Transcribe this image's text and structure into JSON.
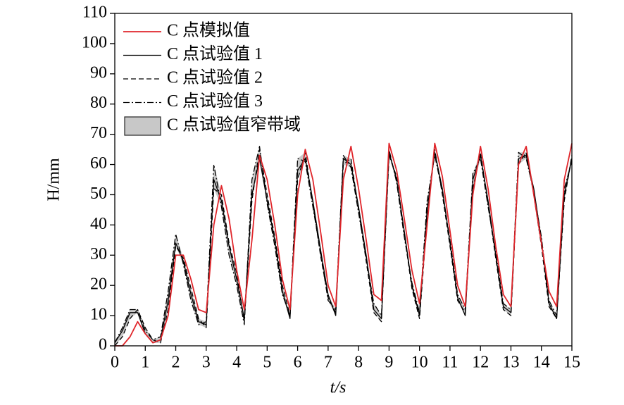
{
  "chart_data": {
    "type": "line",
    "xlabel": "t/s",
    "ylabel": "H/mm",
    "xlim": [
      0,
      15
    ],
    "ylim": [
      0,
      110
    ],
    "xticks": [
      0,
      1,
      2,
      3,
      4,
      5,
      6,
      7,
      8,
      9,
      10,
      11,
      12,
      13,
      14,
      15
    ],
    "yticks": [
      0,
      10,
      20,
      30,
      40,
      50,
      60,
      70,
      80,
      90,
      100,
      110
    ],
    "legend": "upper left",
    "x": [
      0,
      0.25,
      0.5,
      0.75,
      1,
      1.25,
      1.5,
      1.75,
      2,
      2.25,
      2.5,
      2.75,
      3,
      3.25,
      3.5,
      3.75,
      4,
      4.25,
      4.5,
      4.75,
      5,
      5.25,
      5.5,
      5.75,
      6,
      6.25,
      6.5,
      6.75,
      7,
      7.25,
      7.5,
      7.75,
      8,
      8.25,
      8.5,
      8.75,
      9,
      9.25,
      9.5,
      9.75,
      10,
      10.25,
      10.5,
      10.75,
      11,
      11.25,
      11.5,
      11.75,
      12,
      12.25,
      12.5,
      12.75,
      13,
      13.25,
      13.5,
      13.75,
      14,
      14.25,
      14.5,
      14.75,
      15
    ],
    "series": [
      {
        "name": "C 点模拟值",
        "color": "#e0262b",
        "dash": "solid",
        "values": [
          0,
          0,
          3,
          8,
          4,
          1,
          2,
          10,
          30,
          30,
          22,
          12,
          11,
          40,
          53,
          42,
          25,
          12,
          35,
          63,
          55,
          40,
          22,
          12,
          50,
          65,
          55,
          38,
          20,
          13,
          55,
          66,
          52,
          35,
          17,
          15,
          67,
          58,
          42,
          25,
          14,
          40,
          67,
          56,
          38,
          20,
          13,
          50,
          66,
          52,
          33,
          17,
          13,
          60,
          66,
          50,
          34,
          18,
          13,
          55,
          67
        ]
      },
      {
        "name": "C 点试验值 1",
        "color": "#000000",
        "dash": "solid",
        "values": [
          1,
          5,
          11,
          11,
          4,
          1,
          2,
          15,
          34,
          28,
          17,
          8,
          7,
          55,
          48,
          33,
          22,
          9,
          50,
          62,
          48,
          35,
          18,
          9,
          58,
          62,
          48,
          32,
          17,
          10,
          62,
          60,
          46,
          30,
          12,
          9,
          64,
          55,
          38,
          20,
          10,
          45,
          64,
          52,
          34,
          16,
          10,
          55,
          63,
          48,
          30,
          13,
          11,
          62,
          63,
          52,
          35,
          14,
          9,
          50,
          62
        ]
      },
      {
        "name": "C 点试验值 2",
        "color": "#000000",
        "dash": "dashed",
        "values": [
          0,
          3,
          9,
          12,
          6,
          2,
          1,
          12,
          33,
          29,
          19,
          9,
          6,
          52,
          50,
          34,
          24,
          8,
          48,
          65,
          50,
          36,
          20,
          10,
          55,
          64,
          47,
          30,
          16,
          11,
          60,
          62,
          45,
          28,
          11,
          8,
          63,
          56,
          37,
          19,
          9,
          42,
          65,
          50,
          33,
          15,
          11,
          52,
          64,
          47,
          29,
          12,
          10,
          60,
          64,
          50,
          33,
          13,
          9,
          48,
          63
        ]
      },
      {
        "name": "C 点试验值 3",
        "color": "#000000",
        "dash": "dashdot",
        "values": [
          1,
          6,
          12,
          12,
          5,
          2,
          3,
          18,
          37,
          27,
          15,
          7,
          8,
          60,
          46,
          30,
          20,
          7,
          55,
          66,
          47,
          33,
          17,
          10,
          62,
          61,
          46,
          31,
          15,
          12,
          63,
          59,
          44,
          29,
          14,
          10,
          65,
          54,
          36,
          21,
          11,
          48,
          63,
          51,
          35,
          17,
          12,
          57,
          62,
          46,
          31,
          14,
          12,
          64,
          62,
          51,
          36,
          15,
          10,
          52,
          61
        ]
      },
      {
        "name": "C 点试验值窄带域",
        "color": "#c8c8c8",
        "lower": [
          0,
          3,
          9,
          11,
          4,
          1,
          1,
          12,
          33,
          27,
          15,
          7,
          6,
          52,
          46,
          30,
          20,
          7,
          48,
          62,
          47,
          33,
          17,
          9,
          55,
          61,
          46,
          30,
          15,
          10,
          60,
          59,
          44,
          28,
          11,
          8,
          63,
          54,
          36,
          19,
          9,
          42,
          63,
          50,
          33,
          15,
          10,
          52,
          62,
          46,
          29,
          12,
          10,
          60,
          62,
          50,
          33,
          13,
          9,
          48,
          61
        ],
        "upper": [
          1,
          6,
          12,
          12,
          6,
          2,
          3,
          18,
          37,
          29,
          19,
          9,
          8,
          60,
          50,
          34,
          24,
          9,
          55,
          66,
          50,
          36,
          20,
          10,
          62,
          64,
          48,
          32,
          17,
          12,
          63,
          62,
          46,
          30,
          14,
          10,
          65,
          56,
          38,
          21,
          11,
          48,
          65,
          52,
          35,
          17,
          12,
          57,
          64,
          48,
          31,
          14,
          12,
          64,
          64,
          52,
          36,
          15,
          10,
          52,
          63
        ]
      }
    ]
  }
}
